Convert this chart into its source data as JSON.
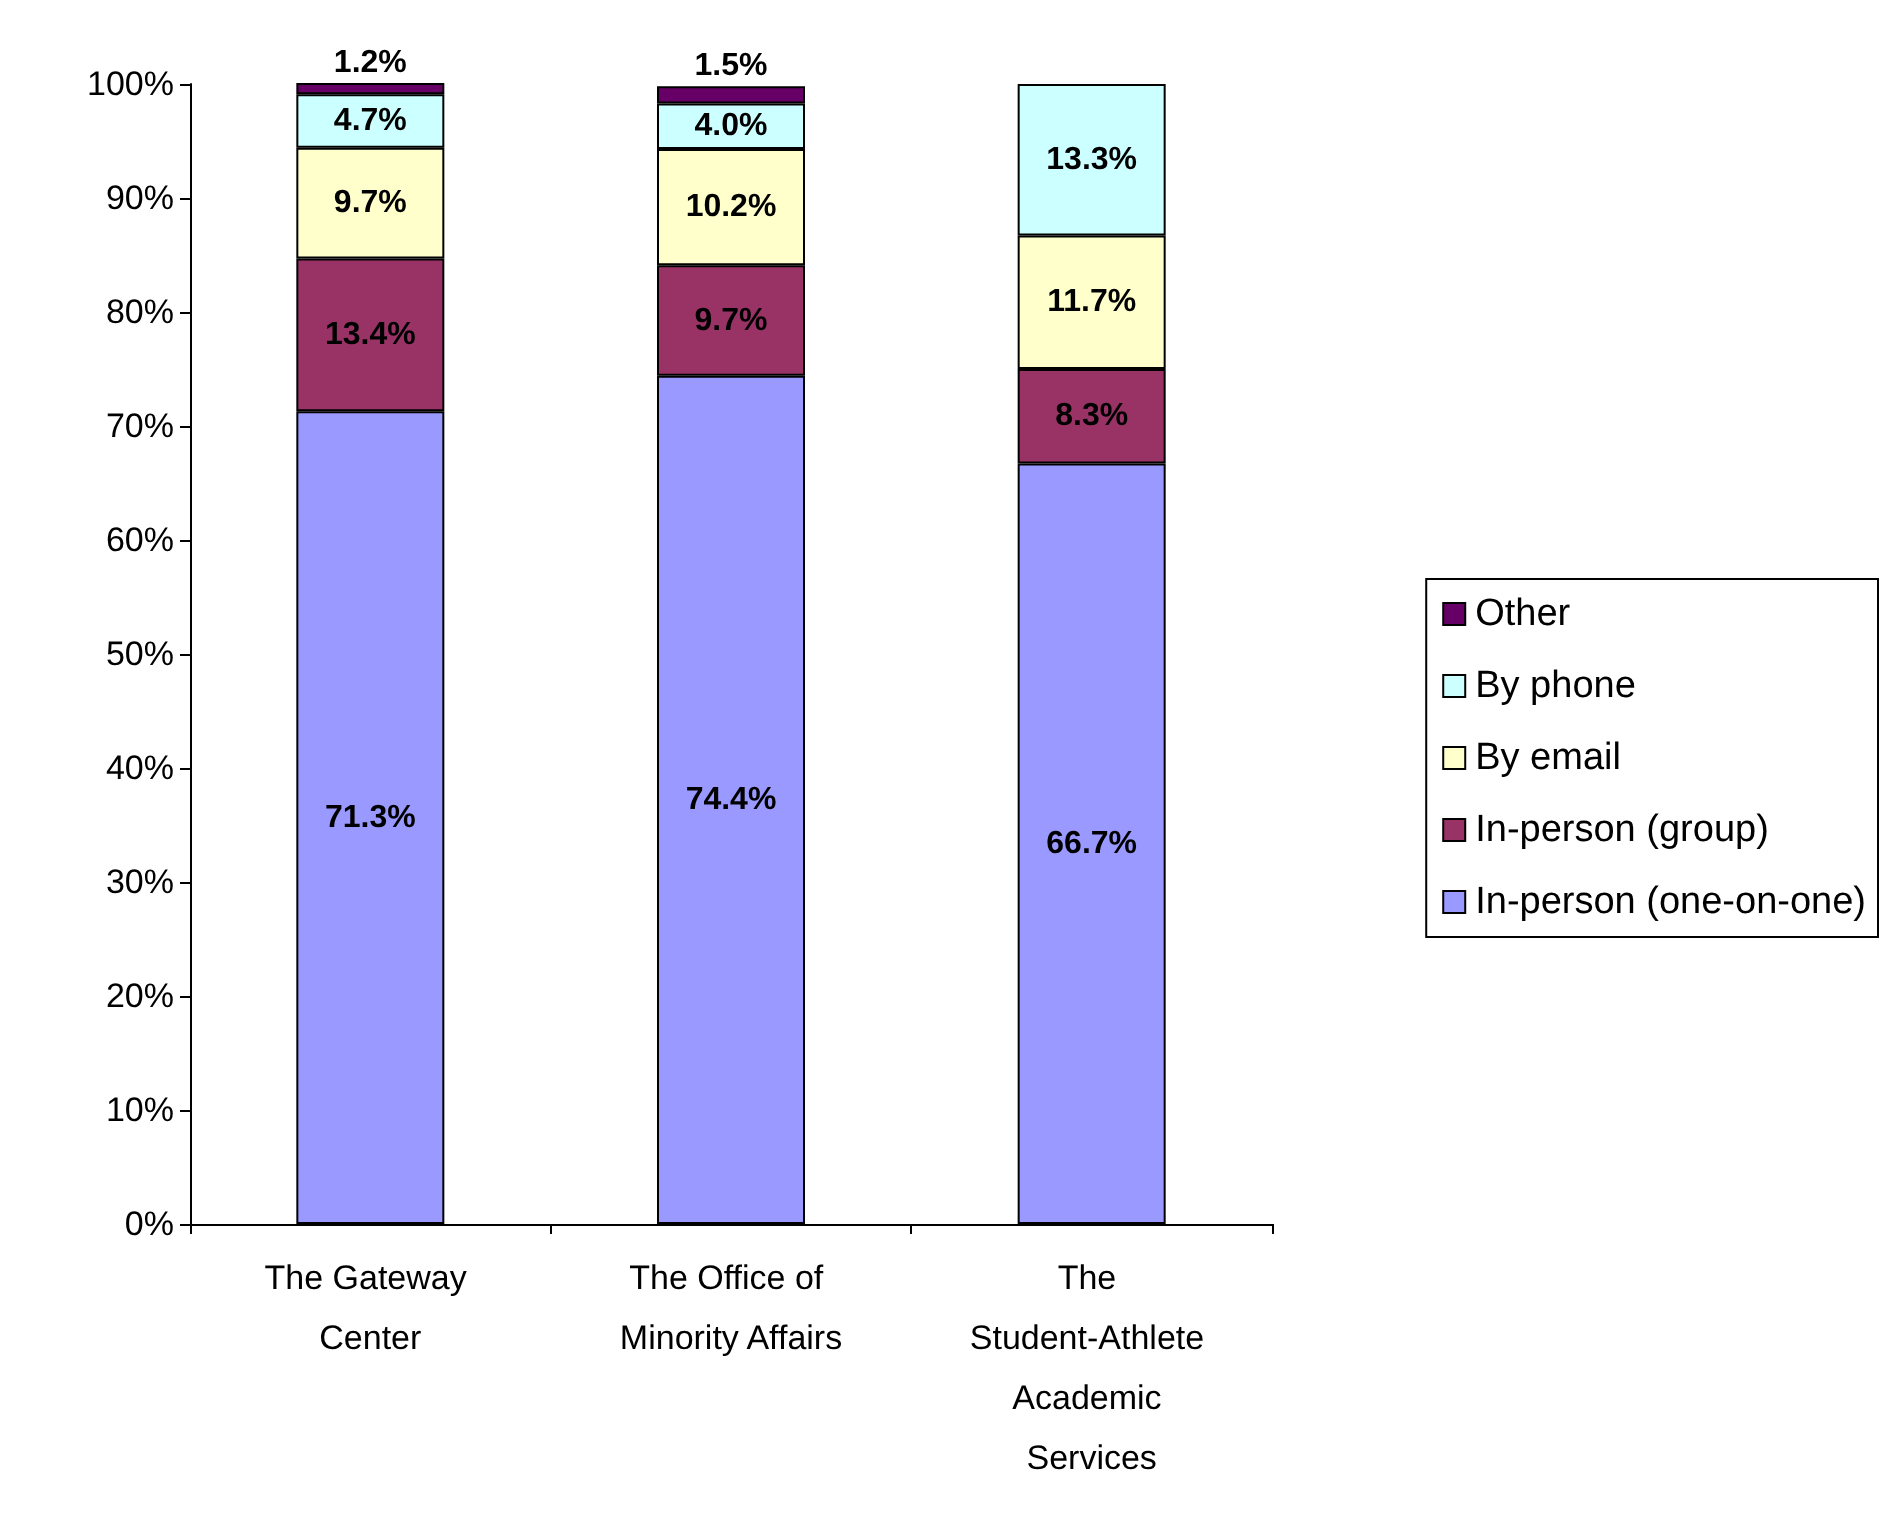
{
  "chart_data": {
    "type": "bar",
    "stacked": true,
    "categories": [
      "The Gateway Center",
      "The Office of Minority Affairs",
      "The Student-Athlete Academic Services"
    ],
    "series": [
      {
        "name": "In-person (one-on-one)",
        "color": "#9999ff",
        "values": [
          71.3,
          74.4,
          66.7
        ],
        "value_labels": [
          "71.3%",
          "74.4%",
          "66.7%"
        ]
      },
      {
        "name": "In-person (group)",
        "color": "#993366",
        "values": [
          13.4,
          9.7,
          8.3
        ],
        "value_labels": [
          "13.4%",
          "9.7%",
          "8.3%"
        ]
      },
      {
        "name": "By email",
        "color": "#ffffcc",
        "values": [
          9.7,
          10.2,
          11.7
        ],
        "value_labels": [
          "9.7%",
          "10.2%",
          "11.7%"
        ]
      },
      {
        "name": "By phone",
        "color": "#ccffff",
        "values": [
          4.7,
          4.0,
          13.3
        ],
        "value_labels": [
          "4.7%",
          "4.0%",
          "13.3%"
        ]
      },
      {
        "name": "Other",
        "color": "#660066",
        "values": [
          1.2,
          1.5,
          null
        ],
        "value_labels": [
          "1.2%",
          "1.5%",
          null
        ]
      }
    ],
    "ylim": [
      0,
      100
    ],
    "yticks": [
      {
        "value": 0,
        "label": "0%"
      },
      {
        "value": 10,
        "label": "10%"
      },
      {
        "value": 20,
        "label": "20%"
      },
      {
        "value": 30,
        "label": "30%"
      },
      {
        "value": 40,
        "label": "40%"
      },
      {
        "value": 50,
        "label": "50%"
      },
      {
        "value": 60,
        "label": "60%"
      },
      {
        "value": 70,
        "label": "70%"
      },
      {
        "value": 80,
        "label": "80%"
      },
      {
        "value": 90,
        "label": "90%"
      },
      {
        "value": 100,
        "label": "100%"
      }
    ],
    "grid": false,
    "legend": "right"
  }
}
